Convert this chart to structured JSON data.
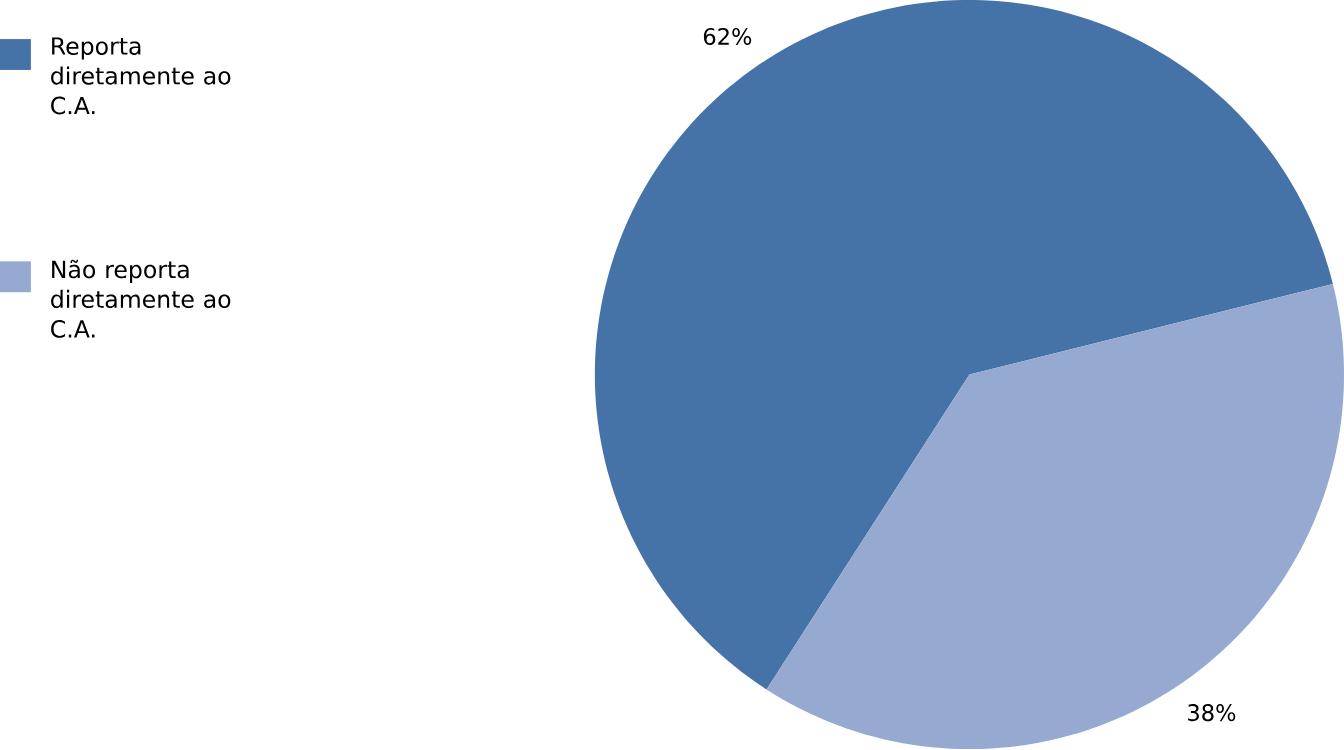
{
  "chart_data": {
    "type": "pie",
    "categories": [
      "Reporta diretamente ao C.A.",
      "Não reporta diretamente ao C.A."
    ],
    "values": [
      62,
      38
    ],
    "colors": [
      "#4573a7",
      "#95a9d1"
    ],
    "value_labels": [
      "62%",
      "38%"
    ],
    "legend": "top left"
  }
}
